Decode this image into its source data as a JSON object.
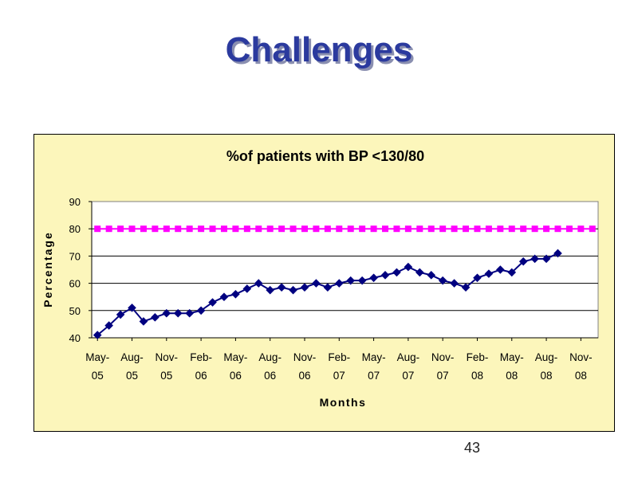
{
  "slide": {
    "title": "Challenges",
    "page_number": "43"
  },
  "chart_data": {
    "type": "line",
    "title": "%of patients with BP <130/80",
    "xlabel": "Months",
    "ylabel": "Percentage",
    "ylim": [
      40,
      90
    ],
    "yticks": [
      40,
      50,
      60,
      70,
      80,
      90
    ],
    "grid": true,
    "legend": "none",
    "x_month_count": 44,
    "x_ticks": [
      {
        "index": 0,
        "line1": "May-",
        "line2": "05"
      },
      {
        "index": 3,
        "line1": "Aug-",
        "line2": "05"
      },
      {
        "index": 6,
        "line1": "Nov-",
        "line2": "05"
      },
      {
        "index": 9,
        "line1": "Feb-",
        "line2": "06"
      },
      {
        "index": 12,
        "line1": "May-",
        "line2": "06"
      },
      {
        "index": 15,
        "line1": "Aug-",
        "line2": "06"
      },
      {
        "index": 18,
        "line1": "Nov-",
        "line2": "06"
      },
      {
        "index": 21,
        "line1": "Feb-",
        "line2": "07"
      },
      {
        "index": 24,
        "line1": "May-",
        "line2": "07"
      },
      {
        "index": 27,
        "line1": "Aug-",
        "line2": "07"
      },
      {
        "index": 30,
        "line1": "Nov-",
        "line2": "07"
      },
      {
        "index": 33,
        "line1": "Feb-",
        "line2": "08"
      },
      {
        "index": 36,
        "line1": "May-",
        "line2": "08"
      },
      {
        "index": 39,
        "line1": "Aug-",
        "line2": "08"
      },
      {
        "index": 42,
        "line1": "Nov-",
        "line2": "08"
      }
    ],
    "series": [
      {
        "color": "#000080",
        "marker": "diamond",
        "values": [
          41,
          44.5,
          48.5,
          51,
          46,
          47.5,
          49,
          49,
          49,
          50,
          53,
          55,
          56,
          58,
          60,
          57.5,
          58.5,
          57.5,
          58.5,
          60,
          58.5,
          60,
          61,
          61,
          62,
          63,
          64,
          66,
          64,
          63,
          61,
          60,
          58.5,
          62,
          63.5,
          65,
          64,
          68,
          69,
          69,
          71
        ]
      },
      {
        "color": "#ff00ff",
        "marker": "square",
        "values": [
          80,
          80,
          80,
          80,
          80,
          80,
          80,
          80,
          80,
          80,
          80,
          80,
          80,
          80,
          80,
          80,
          80,
          80,
          80,
          80,
          80,
          80,
          80,
          80,
          80,
          80,
          80,
          80,
          80,
          80,
          80,
          80,
          80,
          80,
          80,
          80,
          80,
          80,
          80,
          80,
          80,
          80,
          80,
          80
        ]
      }
    ]
  }
}
